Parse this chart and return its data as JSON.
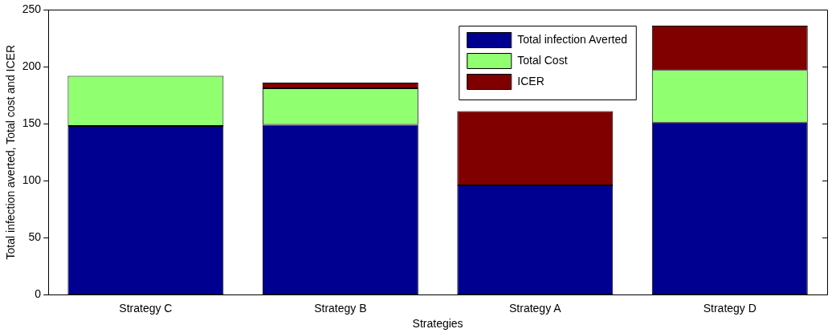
{
  "chart_data": {
    "type": "bar",
    "stacked": true,
    "xlabel": "Strategies",
    "ylabel": "Total infection averted, Total cost and ICER",
    "categories": [
      "Strategy C",
      "Strategy B",
      "Strategy A",
      "Strategy D"
    ],
    "series": [
      {
        "name": "Total infection Averted",
        "color": "#000090",
        "values": [
          148,
          149,
          96,
          151
        ]
      },
      {
        "name": "Total Cost",
        "color": "#90ff70",
        "values": [
          44,
          32,
          0,
          46
        ]
      },
      {
        "name": "ICER",
        "color": "#800000",
        "values": [
          0,
          5,
          65,
          39
        ]
      }
    ],
    "ylim": [
      0,
      250
    ],
    "yticks": [
      0,
      50,
      100,
      150,
      200,
      250
    ],
    "grid": false,
    "legend": "top right"
  }
}
